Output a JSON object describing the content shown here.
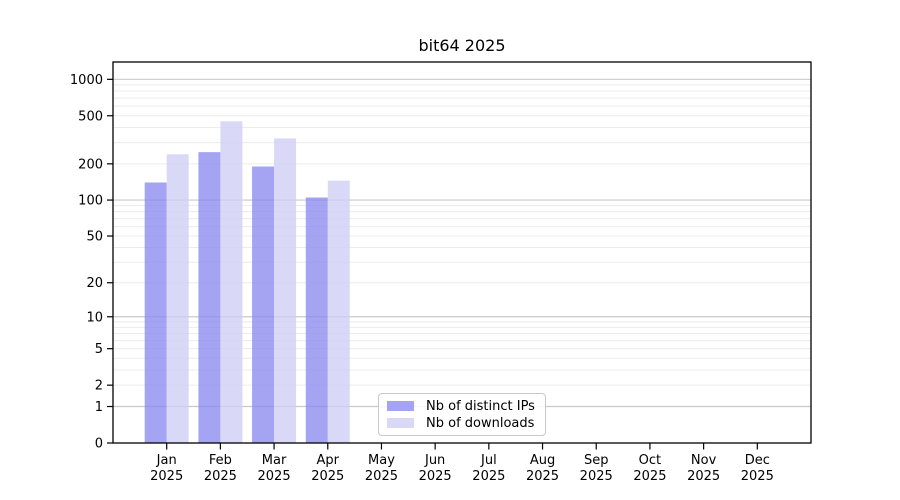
{
  "title": "bit64 2025",
  "chart_data": {
    "type": "bar",
    "title": "bit64 2025",
    "categories": [
      "Jan",
      "Feb",
      "Mar",
      "Apr",
      "May",
      "Jun",
      "Jul",
      "Aug",
      "Sep",
      "Oct",
      "Nov",
      "Dec"
    ],
    "x_tick_year": "2025",
    "series": [
      {
        "name": "Nb of distinct IPs",
        "color": "#8b8bf0",
        "values": [
          140,
          250,
          190,
          105,
          null,
          null,
          null,
          null,
          null,
          null,
          null,
          null
        ]
      },
      {
        "name": "Nb of downloads",
        "color": "#cecef5",
        "values": [
          240,
          450,
          325,
          145,
          null,
          null,
          null,
          null,
          null,
          null,
          null,
          null
        ]
      }
    ],
    "yscale": "log1p",
    "yticks": [
      0,
      1,
      2,
      5,
      10,
      20,
      50,
      100,
      200,
      500,
      1000
    ],
    "ylim": [
      0,
      1390
    ],
    "grid": "horizontal",
    "legend_position": "lower center inside"
  },
  "style_colors": {
    "major_grid": "#c9c9c9",
    "minor_grid": "#ececec",
    "spine": "#000000",
    "background": "#ffffff"
  }
}
